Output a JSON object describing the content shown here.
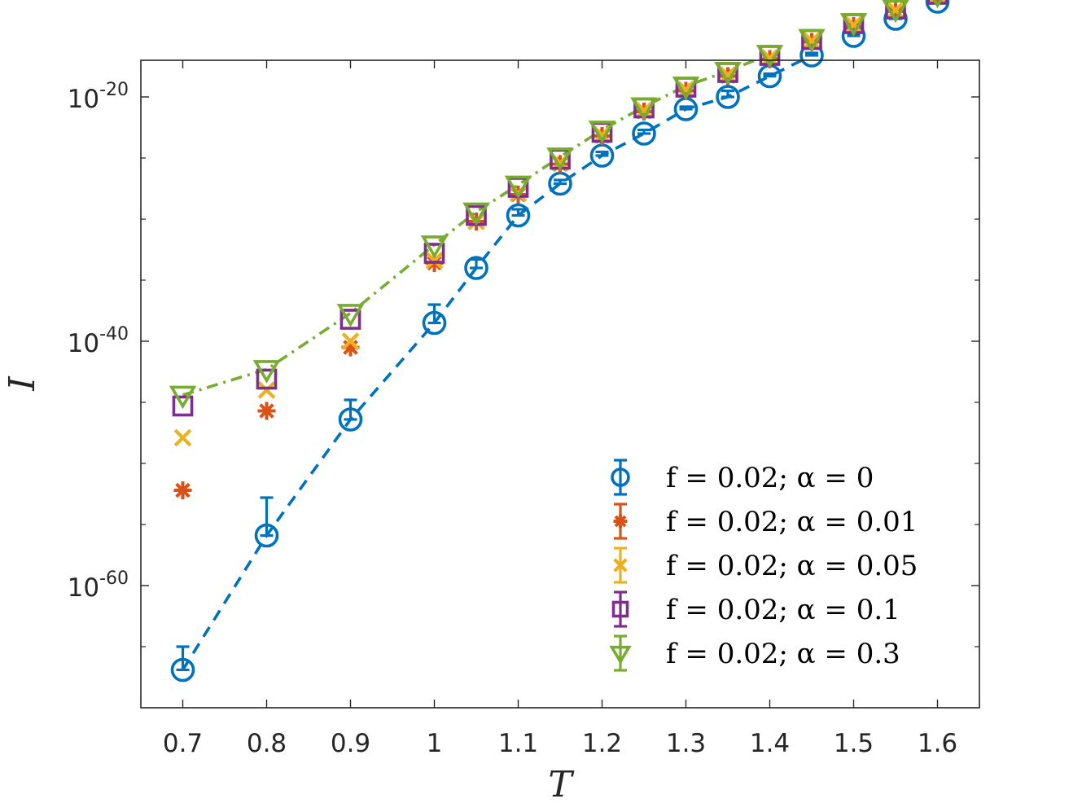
{
  "chart_data": {
    "type": "line",
    "title": "",
    "xlabel": "T",
    "ylabel": "I",
    "xlim": [
      0.65,
      1.65
    ],
    "ylim_log10": [
      -70,
      -17
    ],
    "x_ticks": [
      0.7,
      0.8,
      0.9,
      1.0,
      1.1,
      1.2,
      1.3,
      1.4,
      1.5,
      1.6
    ],
    "x_tick_labels": [
      "0.7",
      "0.8",
      "0.9",
      "1",
      "1.1",
      "1.2",
      "1.3",
      "1.4",
      "1.5",
      "1.6"
    ],
    "y_major_ticks_log10": [
      -60,
      -40,
      -20
    ],
    "y_tick_labels": [
      {
        "log10": -60,
        "base": "10",
        "exp": "-60"
      },
      {
        "log10": -40,
        "base": "10",
        "exp": "-40"
      },
      {
        "log10": -20,
        "base": "10",
        "exp": "-20"
      }
    ],
    "y_minor_ticks_log10": [
      -65,
      -55,
      -50,
      -45,
      -35,
      -30,
      -25
    ],
    "grid": false,
    "legend_position": "bottom-right",
    "series": [
      {
        "name": "f = 0.02; α = 0",
        "legend_math": "f = 0.02; α = 0",
        "color": "#0072BD",
        "marker": "circle",
        "line": "dashed",
        "x": [
          0.7,
          0.8,
          0.9,
          1.0,
          1.05,
          1.1,
          1.15,
          1.2,
          1.25,
          1.3,
          1.35,
          1.4,
          1.45,
          1.5,
          1.55,
          1.6
        ],
        "log10_y": [
          -66.9,
          -55.9,
          -46.4,
          -38.5,
          -34.0,
          -29.7,
          -27.1,
          -24.8,
          -23.0,
          -21.0,
          -20.0,
          -18.3,
          -16.6,
          -15.0,
          -13.6,
          -12.2
        ],
        "err_up": [
          1.9,
          3.1,
          1.6,
          1.5,
          0.7,
          0.5,
          0.3,
          0.3,
          0.3,
          0.2,
          0.5,
          0.2,
          0.2,
          0.2,
          0.2,
          0.2
        ]
      },
      {
        "name": "f = 0.02; α = 0.01",
        "legend_math": "f = 0.02; α = 0.01",
        "color": "#D95319",
        "marker": "asterisk",
        "line": "none",
        "x": [
          0.7,
          0.8,
          0.9,
          1.0,
          1.05,
          1.1,
          1.15,
          1.2,
          1.25,
          1.3,
          1.35,
          1.4,
          1.45,
          1.5,
          1.55,
          1.6
        ],
        "log10_y": [
          -52.2,
          -45.7,
          -40.5,
          -33.6,
          -30.2,
          -28.0,
          -25.5,
          -23.2,
          -21.2,
          -19.5,
          -18.3,
          -16.9,
          -15.5,
          -14.2,
          -13.0,
          -11.8
        ],
        "err_up": [
          0,
          0,
          0,
          0,
          0,
          0,
          0,
          0,
          0,
          0,
          0,
          0,
          0,
          0,
          0,
          0
        ]
      },
      {
        "name": "f = 0.02; α = 0.05",
        "legend_math": "f = 0.02; α = 0.05",
        "color": "#EDB120",
        "marker": "x",
        "line": "none",
        "x": [
          0.7,
          0.8,
          0.9,
          1.0,
          1.05,
          1.1,
          1.15,
          1.2,
          1.25,
          1.3,
          1.35,
          1.4,
          1.45,
          1.5,
          1.55,
          1.6
        ],
        "log10_y": [
          -47.9,
          -44.0,
          -40.0,
          -33.4,
          -30.2,
          -27.9,
          -25.4,
          -23.1,
          -21.1,
          -19.4,
          -18.2,
          -16.8,
          -15.4,
          -14.1,
          -12.9,
          -11.7
        ],
        "err_up": [
          0,
          0,
          0,
          0,
          0,
          0,
          0,
          0,
          0,
          0,
          0,
          0,
          0,
          0,
          0,
          0
        ]
      },
      {
        "name": "f = 0.02; α = 0.1",
        "legend_math": "f = 0.02; α = 0.1",
        "color": "#7E2F8E",
        "marker": "square",
        "line": "none",
        "x": [
          0.7,
          0.8,
          0.9,
          1.0,
          1.05,
          1.1,
          1.15,
          1.2,
          1.25,
          1.3,
          1.35,
          1.4,
          1.45,
          1.5,
          1.55,
          1.6
        ],
        "log10_y": [
          -45.3,
          -43.1,
          -38.2,
          -32.8,
          -29.7,
          -27.4,
          -25.1,
          -22.9,
          -20.9,
          -19.2,
          -18.0,
          -16.6,
          -15.3,
          -14.0,
          -12.8,
          -11.6
        ],
        "err_up": [
          0,
          0,
          0,
          0,
          0,
          0,
          0,
          0,
          0,
          0,
          0,
          0,
          0,
          0,
          0,
          0
        ]
      },
      {
        "name": "f = 0.02; α = 0.3",
        "legend_math": "f = 0.02; α = 0.3",
        "color": "#77AC30",
        "marker": "triangle-down",
        "line": "dash-dot",
        "x": [
          0.7,
          0.8,
          0.9,
          1.0,
          1.05,
          1.1,
          1.15,
          1.2,
          1.25,
          1.3,
          1.35,
          1.4,
          1.45,
          1.5,
          1.55,
          1.6
        ],
        "log10_y": [
          -44.4,
          -42.3,
          -37.7,
          -32.1,
          -29.4,
          -27.2,
          -24.9,
          -22.7,
          -20.8,
          -19.1,
          -17.9,
          -16.5,
          -15.2,
          -13.9,
          -12.8,
          -11.6
        ],
        "err_up": [
          0,
          0,
          0,
          0,
          0,
          0,
          0,
          0,
          0,
          0,
          0,
          0,
          0,
          0,
          0,
          0
        ]
      }
    ]
  }
}
